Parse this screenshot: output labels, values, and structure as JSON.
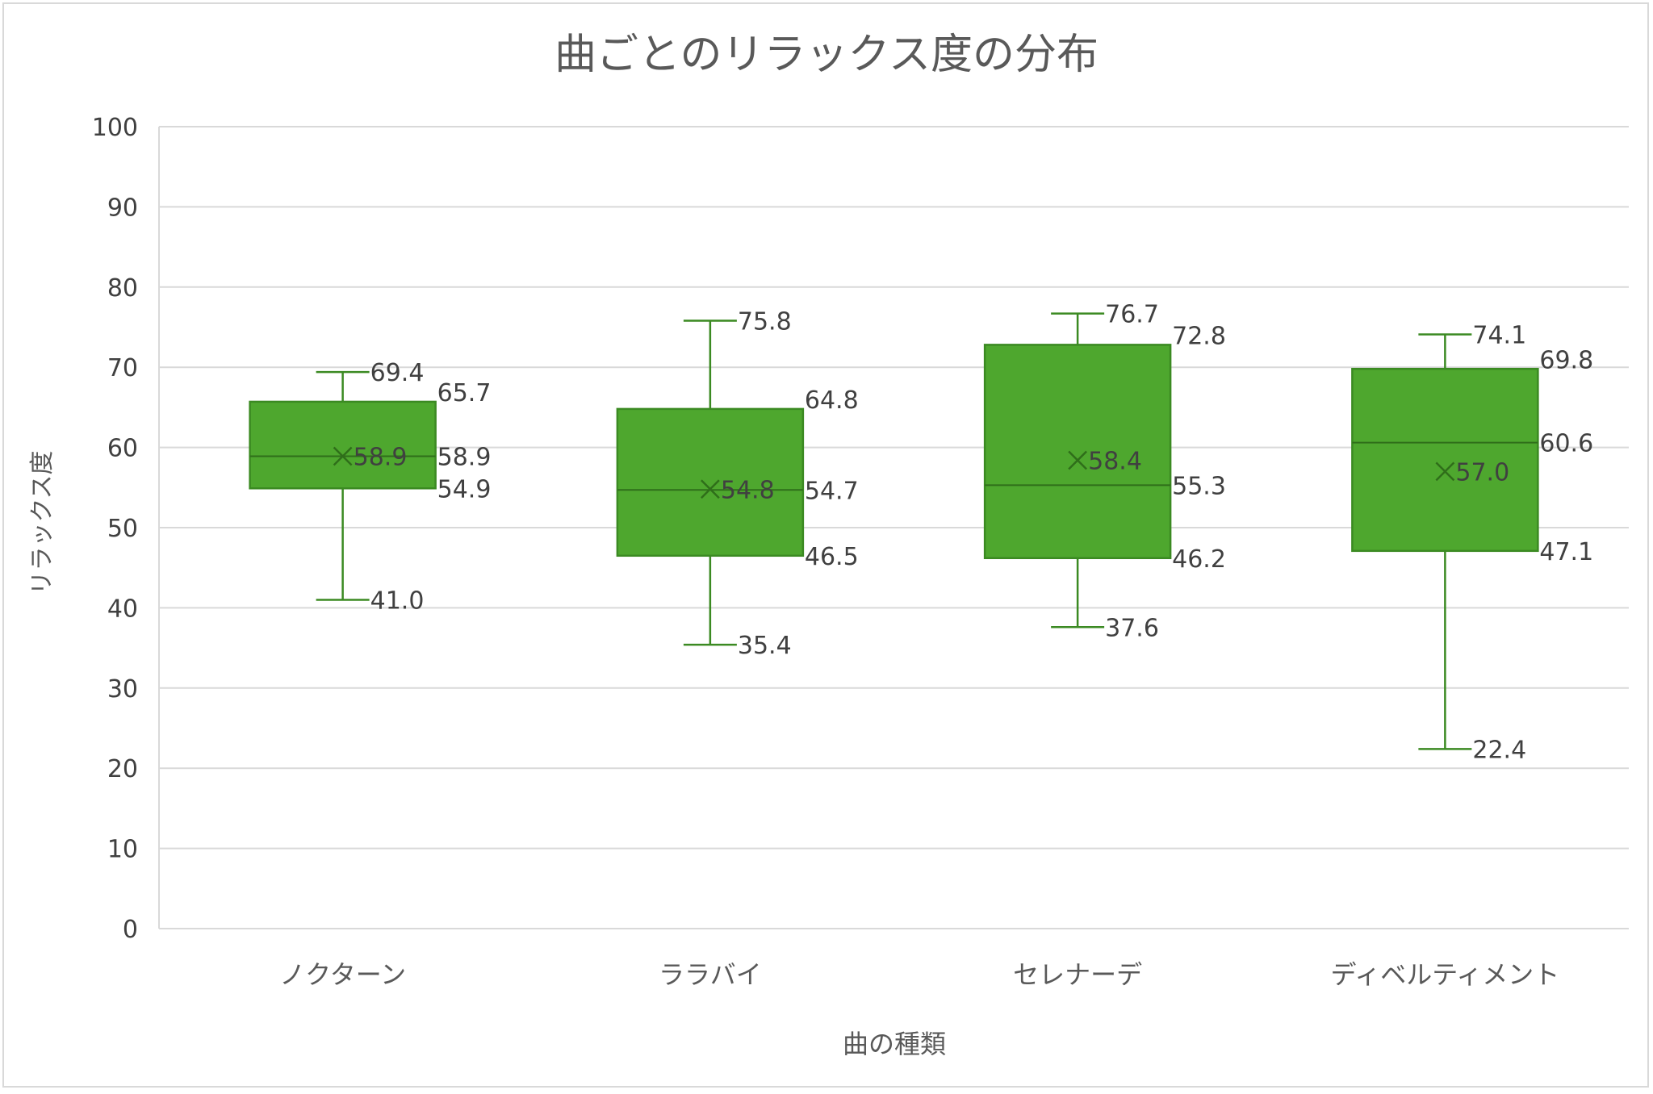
{
  "chart_data": {
    "type": "box",
    "title": "曲ごとのリラックス度の分布",
    "xlabel": "曲の種類",
    "ylabel": "リラックス度",
    "ylim": [
      0,
      100
    ],
    "y_ticks": [
      "0",
      "10",
      "20",
      "30",
      "40",
      "50",
      "60",
      "70",
      "80",
      "90",
      "100"
    ],
    "grid": true,
    "colors": {
      "box_fill": "#4ea72e",
      "box_stroke": "#3b8a22",
      "grid": "#d9d9d9",
      "label": "#404040"
    },
    "categories": [
      "ノクターン",
      "ララバイ",
      "セレナーデ",
      "ディベルティメント"
    ],
    "boxes": [
      {
        "min": 41.0,
        "q1": 54.9,
        "median": 58.9,
        "q3": 65.7,
        "max": 69.4,
        "mean": 58.9,
        "labels": {
          "max": "69.4",
          "q3": "65.7",
          "median": "58.9",
          "q1": "54.9",
          "min": "41.0",
          "mean": "58.9"
        }
      },
      {
        "min": 35.4,
        "q1": 46.5,
        "median": 54.7,
        "q3": 64.8,
        "max": 75.8,
        "mean": 54.8,
        "labels": {
          "max": "75.8",
          "q3": "64.8",
          "median": "54.7",
          "q1": "46.5",
          "min": "35.4",
          "mean": "54.8"
        }
      },
      {
        "min": 37.6,
        "q1": 46.2,
        "median": 55.3,
        "q3": 72.8,
        "max": 76.7,
        "mean": 58.4,
        "labels": {
          "max": "76.7",
          "q3": "72.8",
          "median": "55.3",
          "q1": "46.2",
          "min": "37.6",
          "mean": "58.4"
        }
      },
      {
        "min": 22.4,
        "q1": 47.1,
        "median": 60.6,
        "q3": 69.8,
        "max": 74.1,
        "mean": 57.0,
        "labels": {
          "max": "74.1",
          "q3": "69.8",
          "median": "60.6",
          "q1": "47.1",
          "min": "22.4",
          "mean": "57.0"
        }
      }
    ]
  }
}
